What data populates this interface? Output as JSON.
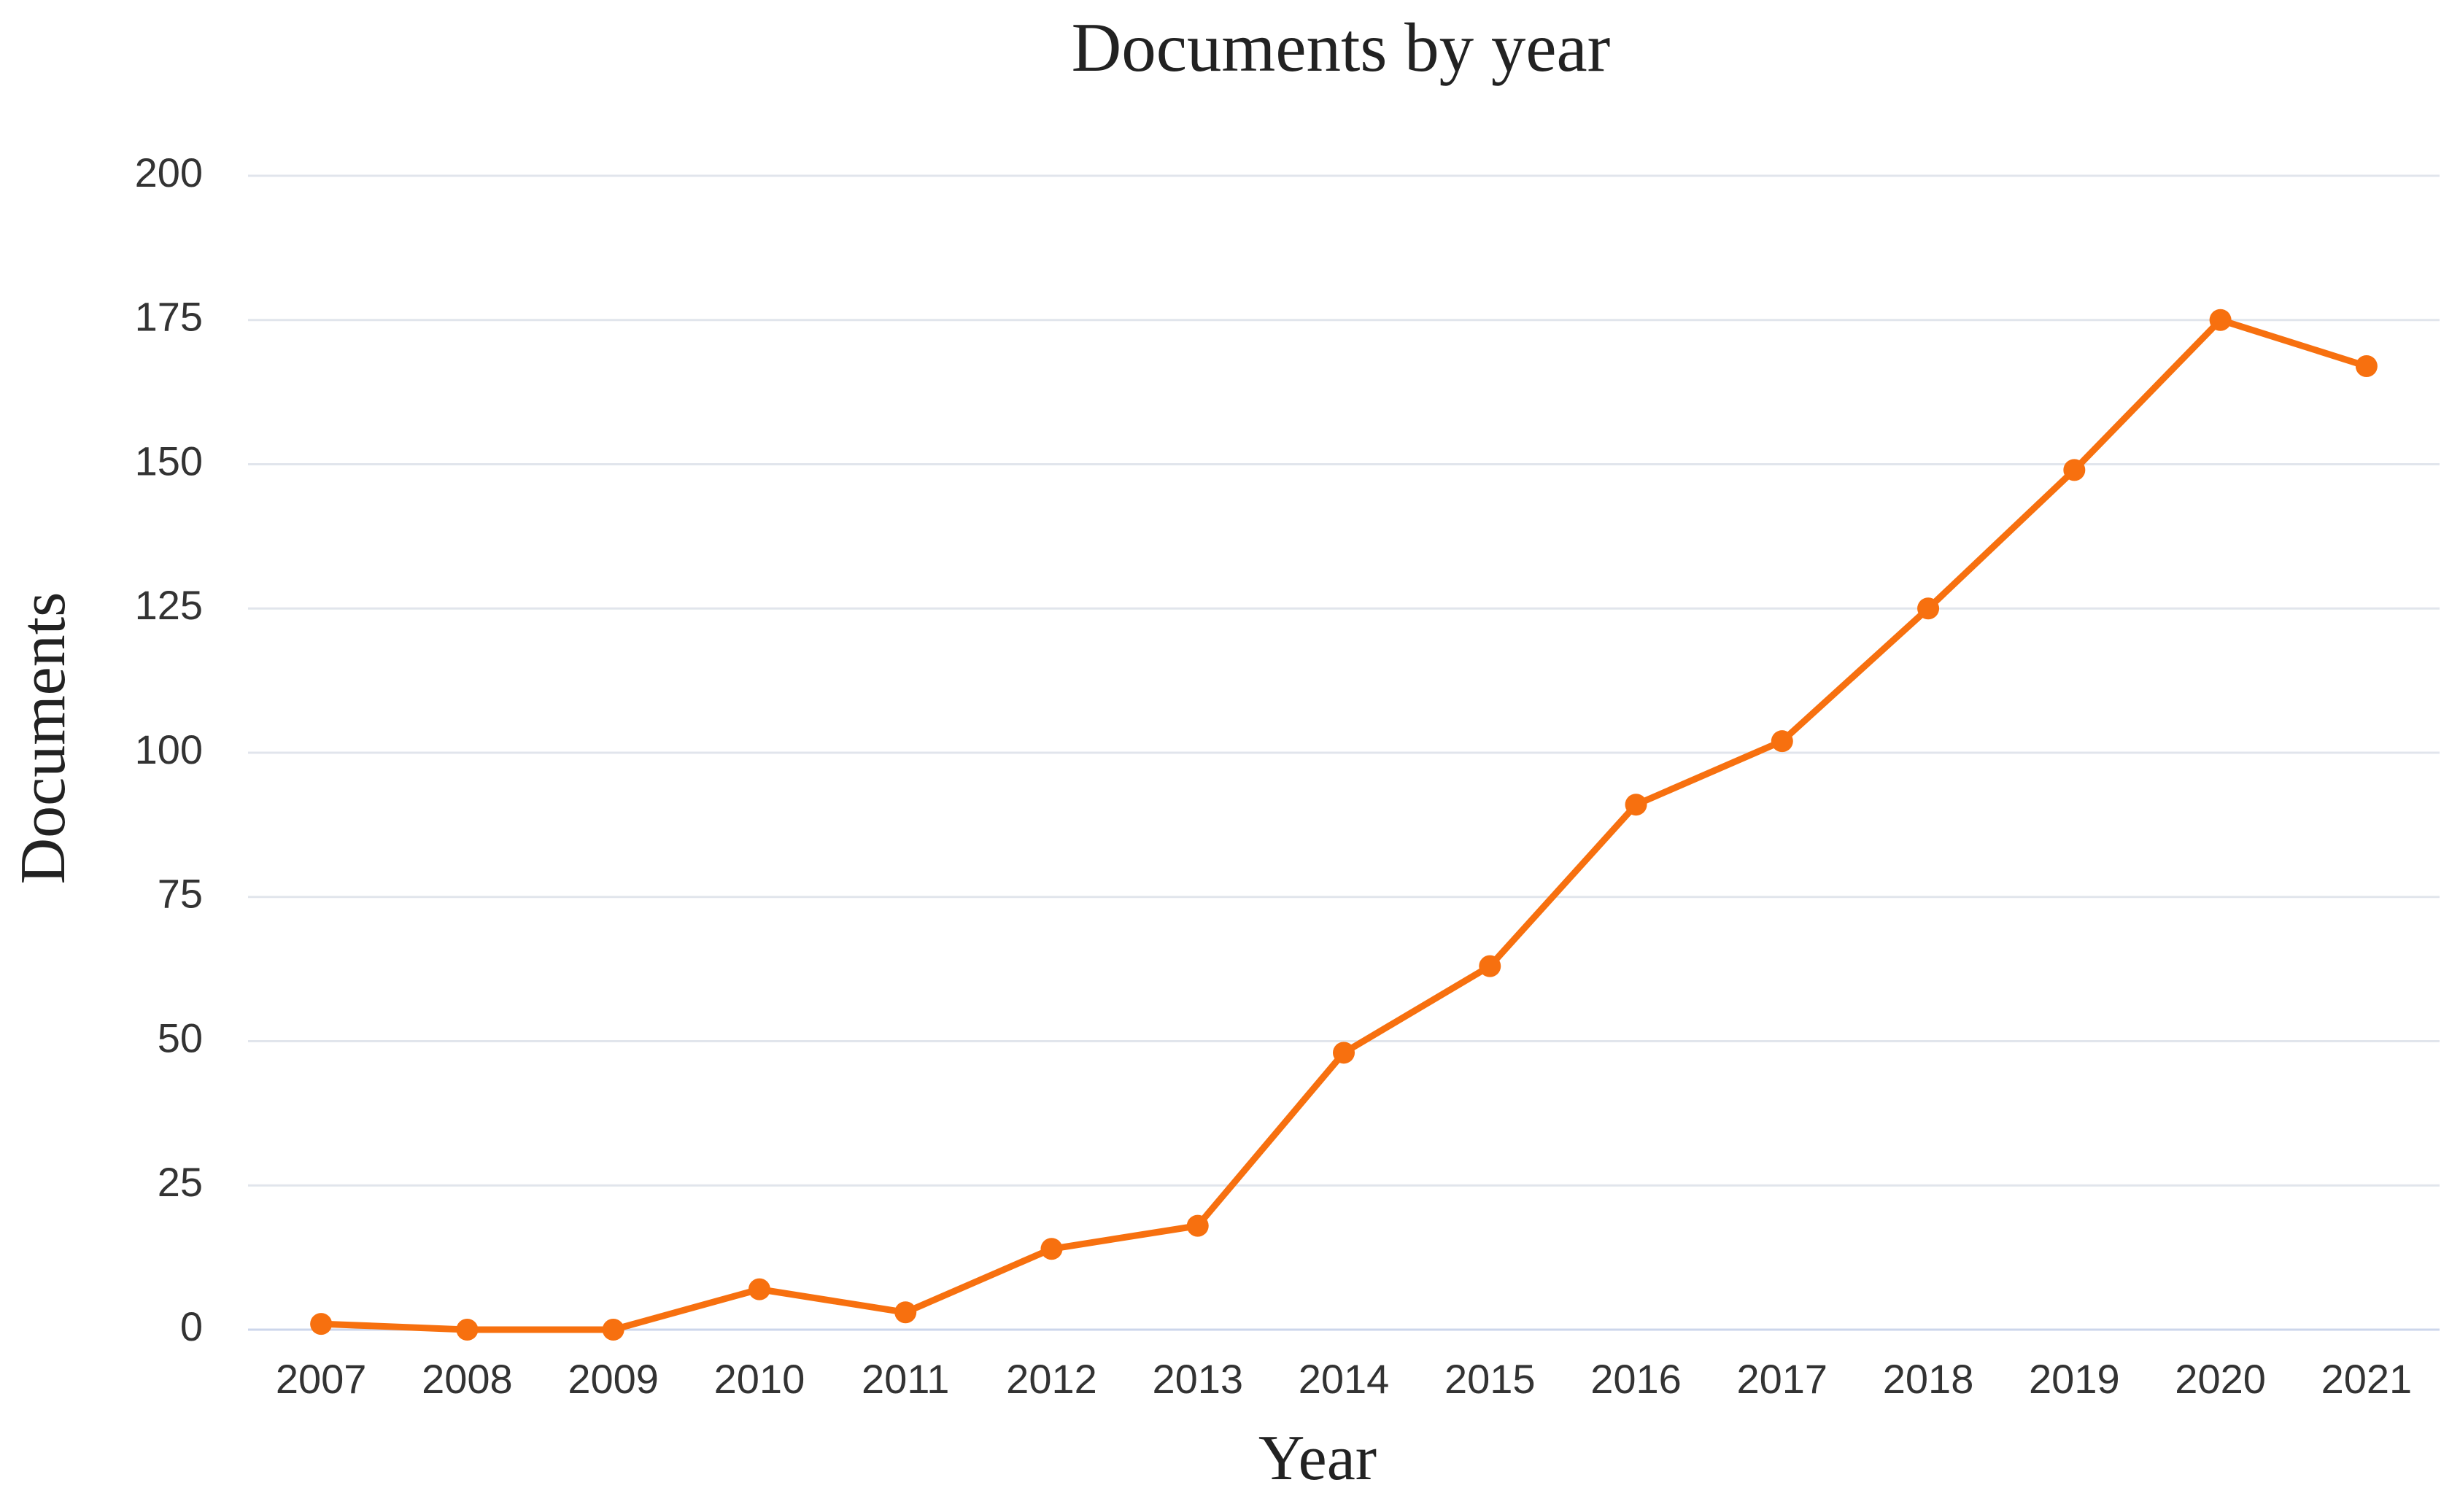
{
  "chart_data": {
    "type": "line",
    "title": "Documents by year",
    "x_label": "Year",
    "y_label": "Documents",
    "categories": [
      "2007",
      "2008",
      "2009",
      "2010",
      "2011",
      "2012",
      "2013",
      "2014",
      "2015",
      "2016",
      "2017",
      "2018",
      "2019",
      "2020",
      "2021"
    ],
    "series": [
      {
        "name": "Documents",
        "color": "#f7700f",
        "values": [
          1,
          0,
          0,
          7,
          3,
          14,
          18,
          48,
          63,
          91,
          102,
          125,
          149,
          175,
          167
        ]
      }
    ],
    "ylim": [
      0,
      200
    ],
    "yticks": [
      0,
      25,
      50,
      75,
      100,
      125,
      150,
      175,
      200
    ],
    "grid": true
  }
}
